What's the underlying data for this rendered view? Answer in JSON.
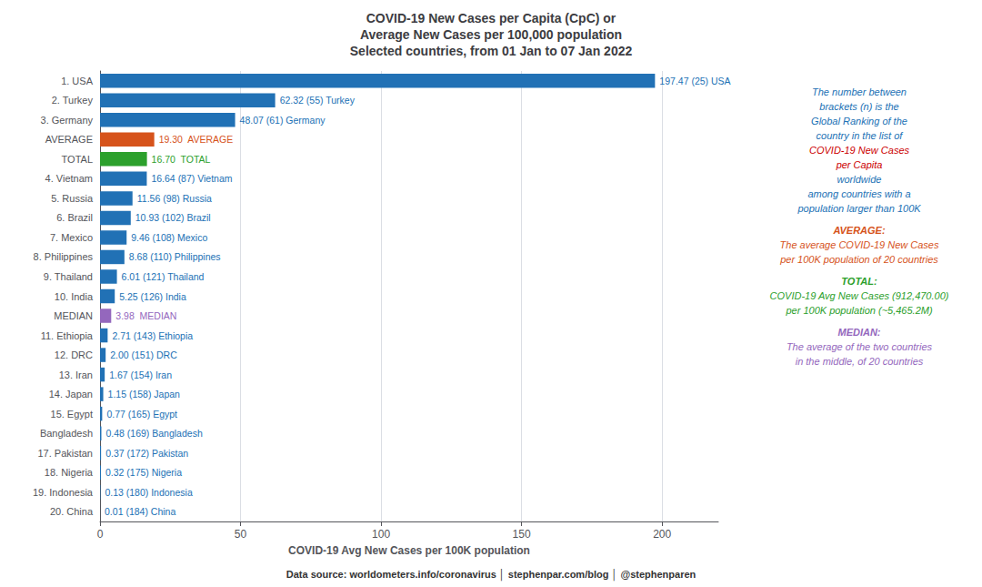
{
  "chart_data": {
    "type": "bar",
    "orientation": "horizontal",
    "title": "COVID-19 New Cases per Capita (CpC) or\nAverage New Cases per 100,000 population\nSelected countries, from 01 Jan to 07 Jan 2022",
    "xlabel": "COVID-19 Avg New Cases per 100K population",
    "footer": "Data source: worldometers.info/coronavirus │ stephenpar.com/blog │ @stephenparen",
    "categories": [
      "1. USA",
      "2. Turkey",
      "3. Germany",
      "AVERAGE",
      "TOTAL",
      "4. Vietnam",
      "5. Russia",
      "6. Brazil",
      "7. Mexico",
      "8. Philippines",
      "9. Thailand",
      "10. India",
      "MEDIAN",
      "11. Ethiopia",
      "12. DRC",
      "13. Iran",
      "14. Japan",
      "15. Egypt",
      "Bangladesh",
      "17. Pakistan",
      "18. Nigeria",
      "19. Indonesia",
      "20. China"
    ],
    "values": [
      197.47,
      62.32,
      48.07,
      19.3,
      16.7,
      16.64,
      11.56,
      10.93,
      9.46,
      8.68,
      6.01,
      5.25,
      3.98,
      2.71,
      2.0,
      1.67,
      1.15,
      0.77,
      0.48,
      0.37,
      0.32,
      0.13,
      0.01
    ],
    "colors": [
      "#2171b5",
      "#2171b5",
      "#2171b5",
      "#d6531b",
      "#2ca02c",
      "#2171b5",
      "#2171b5",
      "#2171b5",
      "#2171b5",
      "#2171b5",
      "#2171b5",
      "#2171b5",
      "#9467bd",
      "#2171b5",
      "#2171b5",
      "#2171b5",
      "#2171b5",
      "#2171b5",
      "#2171b5",
      "#2171b5",
      "#2171b5",
      "#2171b5",
      "#2171b5"
    ],
    "data_labels": true,
    "value_labels": [
      "197.47 (25) USA",
      "62.32 (55) Turkey",
      "48.07 (61) Germany",
      "19.30  AVERAGE",
      "16.70  TOTAL",
      "16.64 (87) Vietnam",
      "11.56 (98) Russia",
      "10.93 (102) Brazil",
      "9.46 (108) Mexico",
      "8.68 (110) Philippines",
      "6.01 (121) Thailand",
      "5.25 (126) India",
      "3.98  MEDIAN",
      "2.71 (143) Ethiopia",
      "2.00 (151) DRC",
      "1.67 (154) Iran",
      "1.15 (158) Japan",
      "0.77 (165) Egypt",
      "0.48 (169) Bangladesh",
      "0.37 (172) Pakistan",
      "0.32 (175) Nigeria",
      "0.13 (180) Indonesia",
      "0.01 (184) China"
    ],
    "xlim": [
      0,
      220
    ],
    "xticks": [
      0,
      50,
      100,
      150,
      200
    ],
    "grid": true,
    "annotations": [
      {
        "text": "The number between",
        "color": "#2171b5"
      },
      {
        "text": "brackets (n) is the",
        "color": "#2171b5"
      },
      {
        "text": "Global Ranking of the",
        "color": "#2171b5"
      },
      {
        "text": "country in the list of",
        "color": "#2171b5"
      },
      {
        "text": "COVID-19 New Cases",
        "color": "#cc0000"
      },
      {
        "text": "per Capita",
        "color": "#cc0000"
      },
      {
        "text": "worldwide",
        "color": "#2171b5"
      },
      {
        "text": "among countries with a",
        "color": "#2171b5"
      },
      {
        "text": "population larger than 100K",
        "color": "#2171b5"
      },
      {
        "text": "AVERAGE:",
        "color": "#d6531b"
      },
      {
        "text": "The average COVID-19 New Cases",
        "color": "#d6531b"
      },
      {
        "text": "per 100K population of 20 countries",
        "color": "#d6531b"
      },
      {
        "text": "TOTAL:",
        "color": "#2ca02c"
      },
      {
        "text": "COVID-19 Avg New Cases (912,470.00)",
        "color": "#2ca02c"
      },
      {
        "text": "per 100K population (~5,465.2M)",
        "color": "#2ca02c"
      },
      {
        "text": "MEDIAN:",
        "color": "#9467bd"
      },
      {
        "text": "The average of the two countries",
        "color": "#9467bd"
      },
      {
        "text": "in the middle, of 20 countries",
        "color": "#9467bd"
      }
    ]
  }
}
